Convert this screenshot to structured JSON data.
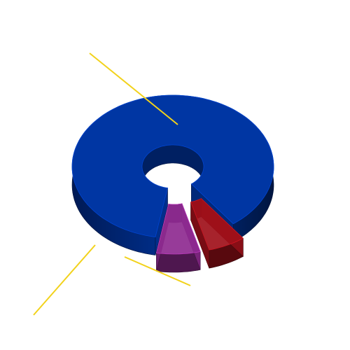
{
  "chart_data": {
    "type": "pie",
    "style": "3d-donut-exploded",
    "title": "",
    "legend": "none",
    "slices": [
      {
        "value": 87,
        "color": "#0036a3"
      },
      {
        "value": 6,
        "color": "#a0101a"
      },
      {
        "value": 7,
        "color": "#8e2a90"
      }
    ],
    "exploded": [
      1,
      2
    ],
    "leader_line_color": "#f2d21b"
  }
}
